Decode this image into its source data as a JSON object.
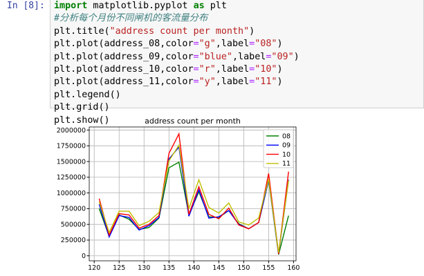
{
  "prompt": "In [8]:",
  "code": {
    "l1": {
      "kw1": "import",
      "mod": " matplotlib.pyplot ",
      "kw2": "as",
      "alias": " plt"
    },
    "l2": "#分析每个月份不同闸机的客流量分布",
    "l3": {
      "a": "plt.title(",
      "s": "\"address count per month\"",
      "b": ")"
    },
    "lines": [
      {
        "a": "plt.plot(address_08,color",
        "c": "\"g\"",
        "m": ",label",
        "l": "\"08\"",
        "e": ")"
      },
      {
        "a": "plt.plot(address_09,color",
        "c": "\"blue\"",
        "m": ",label",
        "l": "\"09\"",
        "e": ")"
      },
      {
        "a": "plt.plot(address_10,color",
        "c": "\"r\"",
        "m": ",label",
        "l": "\"10\"",
        "e": ")"
      },
      {
        "a": "plt.plot(address_11,color",
        "c": "\"y\"",
        "m": ",label",
        "l": "\"11\"",
        "e": ")"
      }
    ],
    "eq": "=",
    "l8": "plt.legend()",
    "l9": "plt.grid()",
    "l10": "plt.show()"
  },
  "chart_data": {
    "type": "line",
    "title": "address count per month",
    "xlim": [
      119,
      160.5
    ],
    "ylim": [
      -80000,
      2050000
    ],
    "xticks": [
      120,
      125,
      130,
      135,
      140,
      145,
      150,
      155,
      160
    ],
    "yticks": [
      0,
      250000,
      500000,
      750000,
      1000000,
      1250000,
      1500000,
      1750000,
      2000000
    ],
    "grid": true,
    "legend": "top-right",
    "x": [
      121,
      123,
      125,
      127,
      129,
      131,
      133,
      135,
      137,
      139,
      141,
      143,
      145,
      147,
      149,
      151,
      153,
      155,
      157,
      159
    ],
    "series": [
      {
        "name": "08",
        "color": "#008000",
        "values": [
          750000,
          310000,
          650000,
          580000,
          420000,
          450000,
          600000,
          1400000,
          1490000,
          650000,
          1020000,
          620000,
          610000,
          720000,
          510000,
          430000,
          530000,
          1200000,
          20000,
          640000
        ]
      },
      {
        "name": "09",
        "color": "#0000ff",
        "values": [
          820000,
          300000,
          640000,
          610000,
          410000,
          480000,
          610000,
          1540000,
          1730000,
          630000,
          1050000,
          600000,
          620000,
          720000,
          500000,
          430000,
          530000,
          1210000,
          30000,
          1210000
        ]
      },
      {
        "name": "10",
        "color": "#ff0000",
        "values": [
          910000,
          330000,
          670000,
          650000,
          440000,
          500000,
          640000,
          1630000,
          1940000,
          660000,
          1100000,
          660000,
          590000,
          760000,
          490000,
          430000,
          530000,
          1310000,
          30000,
          1340000
        ]
      },
      {
        "name": "11",
        "color": "#bfbf00",
        "values": [
          860000,
          370000,
          710000,
          710000,
          480000,
          550000,
          690000,
          1510000,
          1760000,
          750000,
          1210000,
          770000,
          680000,
          840000,
          540000,
          490000,
          600000,
          1220000,
          50000,
          1200000
        ]
      }
    ]
  }
}
